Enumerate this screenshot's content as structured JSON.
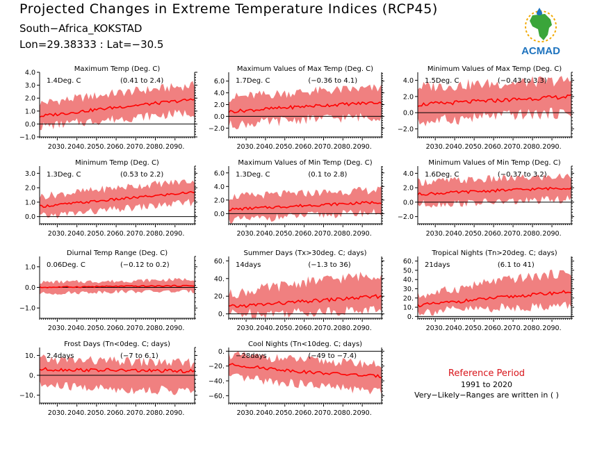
{
  "header": {
    "title": "Projected Changes in Extreme Temperature Indices (RCP45)",
    "location": "South−Africa_KOKSTAD",
    "coords": "Lon=29.38333 : Lat=−30.5"
  },
  "logo": {
    "text": "ACMAD"
  },
  "reference": {
    "label": "Reference Period",
    "years": "1991 to 2020",
    "note": "Very−Likely−Ranges are written in ( )"
  },
  "colors": {
    "band": "#f08080",
    "line": "#ff0000",
    "zero": "#000000",
    "ref_text": "#d8141a"
  },
  "chart_data": [
    {
      "type": "line",
      "title": "Maximum Temp (Deg. C)",
      "change": "1.4Deg. C",
      "range": "(0.41 to 2.4)",
      "xlim": [
        2021,
        2100
      ],
      "xticks": [
        2030,
        2040,
        2050,
        2060,
        2070,
        2080,
        2090
      ],
      "ylim": [
        -1,
        4
      ],
      "yticks": [
        -1,
        0,
        1,
        2,
        3,
        4
      ],
      "ytick_labels": [
        "−1.0",
        "0.0",
        "1.0",
        "2.0",
        "3.0",
        "4.0"
      ],
      "x_start": 2021,
      "mean": [
        0.6,
        1.3,
        1.9
      ],
      "low": [
        -0.2,
        0.4,
        0.9
      ],
      "high": [
        1.6,
        2.4,
        3.0
      ]
    },
    {
      "type": "line",
      "title": "Maximum Values of Max Temp (Deg. C)",
      "change": "1.7Deg. C",
      "range": "(−0.36 to 4.1)",
      "xlim": [
        2021,
        2100
      ],
      "xticks": [
        2030,
        2040,
        2050,
        2060,
        2070,
        2080,
        2090
      ],
      "ylim": [
        -3.5,
        7.5
      ],
      "yticks": [
        -2,
        0,
        2,
        4,
        6
      ],
      "ytick_labels": [
        "−2.0",
        "0.0",
        "2.0",
        "4.0",
        "6.0"
      ],
      "x_start": 2021,
      "mean": [
        0.8,
        1.7,
        2.4
      ],
      "low": [
        -1.5,
        -0.5,
        0.0
      ],
      "high": [
        3.2,
        4.2,
        4.8
      ]
    },
    {
      "type": "line",
      "title": "Minimum Values of Max Temp (Deg. C)",
      "change": "1.5Deg. C",
      "range": "(−0.43 to 3.3)",
      "xlim": [
        2021,
        2100
      ],
      "xticks": [
        2030,
        2040,
        2050,
        2060,
        2070,
        2080,
        2090
      ],
      "ylim": [
        -3,
        5
      ],
      "yticks": [
        -2,
        0,
        2,
        4
      ],
      "ytick_labels": [
        "−2.0",
        "0.0",
        "2.0",
        "4.0"
      ],
      "x_start": 2021,
      "mean": [
        1.0,
        1.5,
        2.0
      ],
      "low": [
        -1.2,
        -0.4,
        0.0
      ],
      "high": [
        3.2,
        3.6,
        4.0
      ]
    },
    {
      "type": "line",
      "title": "Minimum Temp (Deg. C)",
      "change": "1.3Deg. C",
      "range": "(0.53 to 2.2)",
      "xlim": [
        2021,
        2100
      ],
      "xticks": [
        2030,
        2040,
        2050,
        2060,
        2070,
        2080,
        2090
      ],
      "ylim": [
        -0.5,
        3.5
      ],
      "yticks": [
        0,
        1,
        2,
        3
      ],
      "ytick_labels": [
        "0.0",
        "1.0",
        "2.0",
        "3.0"
      ],
      "x_start": 2021,
      "mean": [
        0.7,
        1.2,
        1.7
      ],
      "low": [
        0.0,
        0.5,
        1.0
      ],
      "high": [
        1.4,
        2.0,
        2.5
      ]
    },
    {
      "type": "line",
      "title": "Maximum Values of Min Temp (Deg. C)",
      "change": "1.3Deg. C",
      "range": "(0.1 to 2.8)",
      "xlim": [
        2021,
        2100
      ],
      "xticks": [
        2030,
        2040,
        2050,
        2060,
        2070,
        2080,
        2090
      ],
      "ylim": [
        -1.5,
        7
      ],
      "yticks": [
        0,
        2,
        4,
        6
      ],
      "ytick_labels": [
        "0.0",
        "2.0",
        "4.0",
        "6.0"
      ],
      "x_start": 2021,
      "mean": [
        0.6,
        1.2,
        1.7
      ],
      "low": [
        -1.0,
        -0.3,
        0.2
      ],
      "high": [
        2.5,
        3.0,
        3.5
      ]
    },
    {
      "type": "line",
      "title": "Minimum Values of Min Temp (Deg. C)",
      "change": "1.6Deg. C",
      "range": "(−0.37 to 3.2)",
      "xlim": [
        2021,
        2100
      ],
      "xticks": [
        2030,
        2040,
        2050,
        2060,
        2070,
        2080,
        2090
      ],
      "ylim": [
        -3,
        5
      ],
      "yticks": [
        -2,
        0,
        2,
        4
      ],
      "ytick_labels": [
        "−2.0",
        "0.0",
        "2.0",
        "4.0"
      ],
      "x_start": 2021,
      "mean": [
        1.1,
        1.6,
        2.0
      ],
      "low": [
        -0.3,
        0.0,
        0.4
      ],
      "high": [
        2.8,
        3.2,
        3.6
      ]
    },
    {
      "type": "line",
      "title": "Diurnal Temp Range (Deg. C)",
      "change": "0.06Deg. C",
      "range": "(−0.12 to 0.2)",
      "xlim": [
        2021,
        2100
      ],
      "xticks": [
        2030,
        2040,
        2050,
        2060,
        2070,
        2080,
        2090
      ],
      "ylim": [
        -1.5,
        1.5
      ],
      "yticks": [
        -1,
        0,
        1
      ],
      "ytick_labels": [
        "−1.0",
        "0.0",
        "1.0"
      ],
      "x_start": 2021,
      "mean": [
        0.0,
        0.05,
        0.08
      ],
      "low": [
        -0.3,
        -0.2,
        -0.2
      ],
      "high": [
        0.25,
        0.3,
        0.4
      ]
    },
    {
      "type": "line",
      "title": "Summer Days (Tx>30deg. C; days)",
      "change": "14days",
      "range": "(−1.3 to 36)",
      "xlim": [
        2021,
        2100
      ],
      "xticks": [
        2030,
        2040,
        2050,
        2060,
        2070,
        2080,
        2090
      ],
      "ylim": [
        -5,
        65
      ],
      "yticks": [
        0,
        20,
        40,
        60
      ],
      "ytick_labels": [
        "0.",
        "20.",
        "40.",
        "60."
      ],
      "x_start": 2021,
      "mean": [
        8,
        14,
        20
      ],
      "low": [
        0,
        2,
        5
      ],
      "high": [
        22,
        36,
        45
      ]
    },
    {
      "type": "line",
      "title": "Tropical Nights (Tn>20deg. C; days)",
      "change": "21days",
      "range": "(6.1 to 41)",
      "xlim": [
        2021,
        2100
      ],
      "xticks": [
        2030,
        2040,
        2050,
        2060,
        2070,
        2080,
        2090
      ],
      "ylim": [
        -2,
        65
      ],
      "yticks": [
        0,
        10,
        20,
        30,
        40,
        50,
        60
      ],
      "ytick_labels": [
        "0.",
        "10.",
        "20.",
        "30.",
        "40.",
        "50.",
        "60."
      ],
      "x_start": 2021,
      "mean": [
        12,
        20,
        27
      ],
      "low": [
        5,
        9,
        12
      ],
      "high": [
        22,
        38,
        48
      ]
    },
    {
      "type": "line",
      "title": "Frost Days (Tn<0deg. C; days)",
      "change": "2.4days",
      "range": "(−7 to 6.1)",
      "xlim": [
        2021,
        2100
      ],
      "xticks": [
        2030,
        2040,
        2050,
        2060,
        2070,
        2080,
        2090
      ],
      "ylim": [
        -14,
        14
      ],
      "yticks": [
        -10,
        0,
        10
      ],
      "ytick_labels": [
        "−10.",
        "0.",
        "10."
      ],
      "x_start": 2021,
      "mean": [
        3,
        2.5,
        2
      ],
      "low": [
        -5,
        -7,
        -8
      ],
      "high": [
        8,
        7,
        6
      ]
    },
    {
      "type": "line",
      "title": "Cool Nights (Tn<10deg. C; days)",
      "change": "−28days",
      "range": "(−49 to −7.4)",
      "xlim": [
        2021,
        2100
      ],
      "xticks": [
        2030,
        2040,
        2050,
        2060,
        2070,
        2080,
        2090
      ],
      "ylim": [
        -70,
        5
      ],
      "yticks": [
        -60,
        -40,
        -20,
        0
      ],
      "ytick_labels": [
        "−60.",
        "−40.",
        "−20.",
        "0."
      ],
      "x_start": 2021,
      "mean": [
        -18,
        -28,
        -34
      ],
      "low": [
        -35,
        -45,
        -55
      ],
      "high": [
        -5,
        -12,
        -18
      ]
    }
  ]
}
